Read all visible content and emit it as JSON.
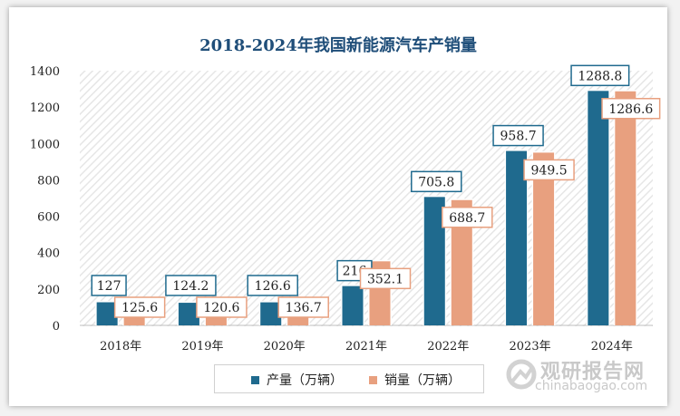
{
  "chart_data": {
    "type": "bar",
    "title": "2018-2024年我国新能源汽车产销量",
    "categories": [
      "2018年",
      "2019年",
      "2020年",
      "2021年",
      "2022年",
      "2023年",
      "2024年"
    ],
    "series": [
      {
        "name": "产量（万辆）",
        "values": [
          127,
          124.2,
          126.6,
          216,
          705.8,
          958.7,
          1288.8
        ],
        "color": "#1f6a8e"
      },
      {
        "name": "销量（万辆）",
        "values": [
          125.6,
          120.6,
          136.7,
          352.1,
          688.7,
          949.5,
          1286.6
        ],
        "color": "#e8a07f"
      }
    ],
    "value_labels": [
      [
        "127",
        "124.2",
        "126.6",
        "216",
        "705.8",
        "958.7",
        "1288.8"
      ],
      [
        "125.6",
        "120.6",
        "136.7",
        "352.1",
        "688.7",
        "949.5",
        "1286.6"
      ]
    ],
    "ylim": [
      0,
      1400
    ],
    "yticks": [
      "0",
      "200",
      "400",
      "600",
      "800",
      "1000",
      "1200",
      "1400"
    ],
    "legend": "bottom",
    "grid": false
  },
  "watermark": {
    "text": "观研报告网",
    "url": "chinabaogao.com"
  }
}
